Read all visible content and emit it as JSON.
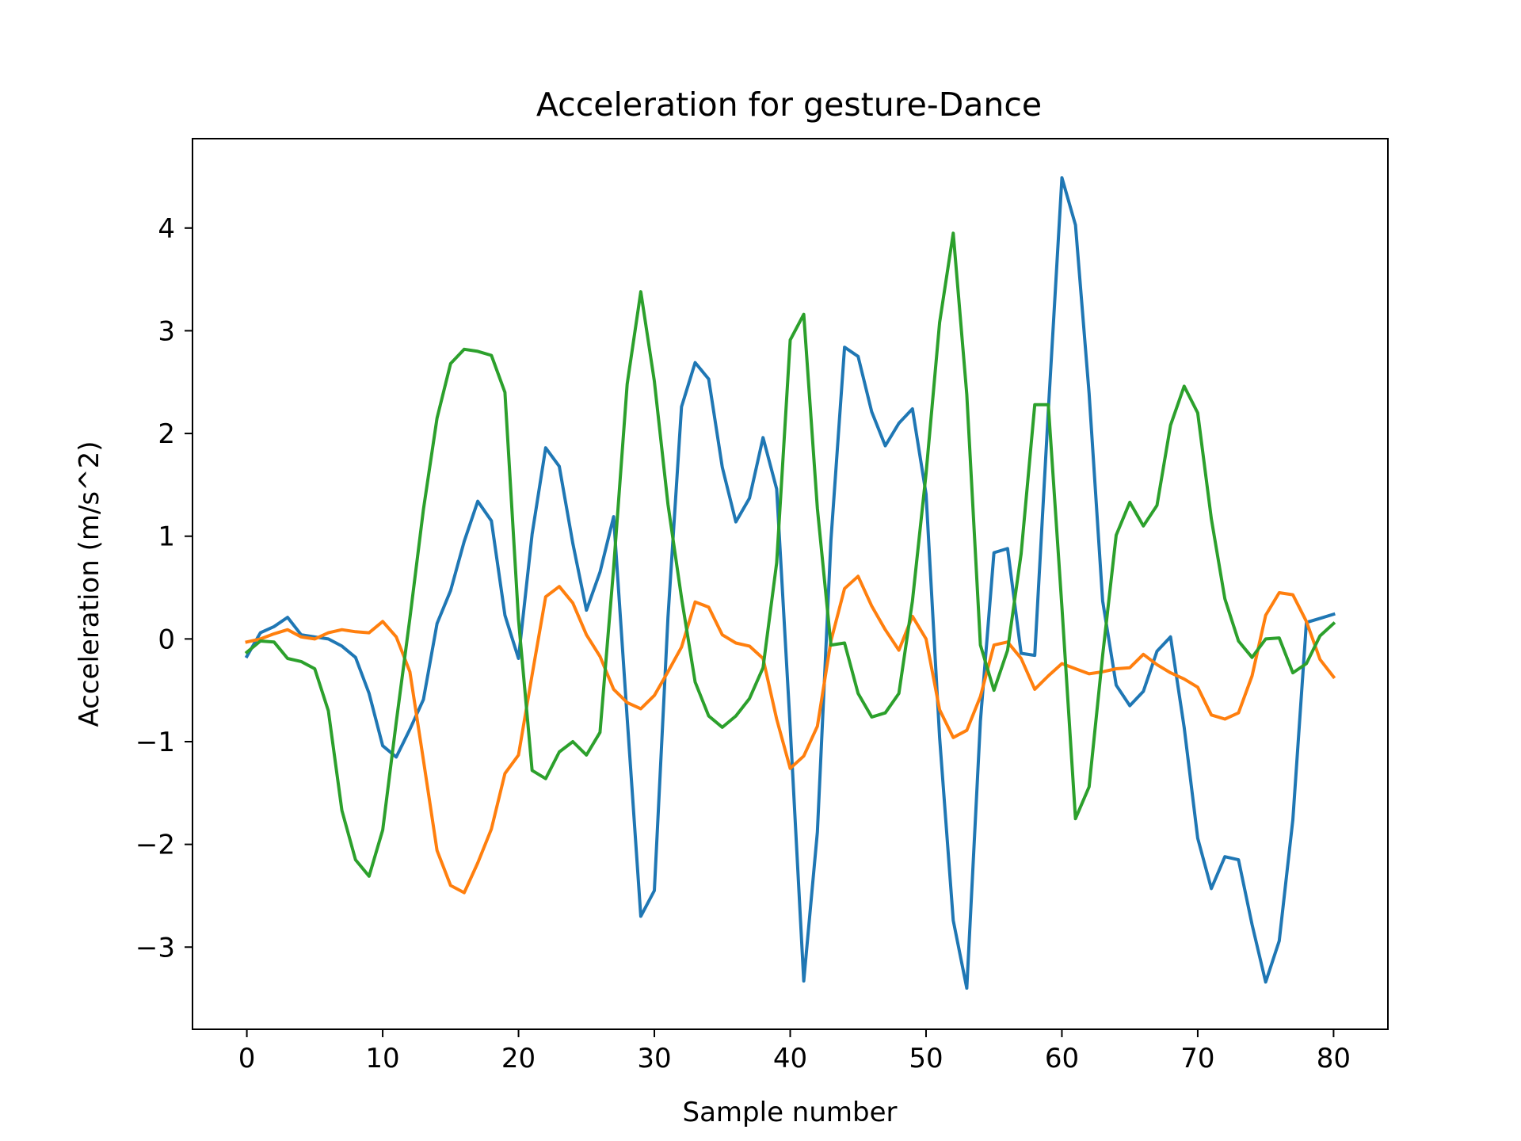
{
  "chart_data": {
    "type": "line",
    "title": "Acceleration for gesture-Dance",
    "xlabel": "Sample number",
    "ylabel": "Acceleration (m/s^2)",
    "xlim": [
      -4,
      84
    ],
    "ylim": [
      -3.8,
      4.87
    ],
    "xticks": [
      0,
      10,
      20,
      30,
      40,
      50,
      60,
      70,
      80
    ],
    "xtick_labels": [
      "0",
      "10",
      "20",
      "30",
      "40",
      "50",
      "60",
      "70",
      "80"
    ],
    "yticks": [
      -3,
      -2,
      -1,
      0,
      1,
      2,
      3,
      4
    ],
    "ytick_labels": [
      "−3",
      "−2",
      "−1",
      "0",
      "1",
      "2",
      "3",
      "4"
    ],
    "grid": false,
    "legend": null,
    "x_start": 0,
    "x_step": 1,
    "series": [
      {
        "color": "#1f77b4",
        "values": [
          -0.17,
          0.06,
          0.12,
          0.21,
          0.04,
          0.02,
          0.0,
          -0.07,
          -0.18,
          -0.53,
          -1.04,
          -1.15,
          -0.88,
          -0.59,
          0.15,
          0.47,
          0.95,
          1.34,
          1.15,
          0.23,
          -0.19,
          1.02,
          1.86,
          1.68,
          0.93,
          0.28,
          0.65,
          1.19,
          -0.77,
          -2.7,
          -2.45,
          0.21,
          2.26,
          2.69,
          2.53,
          1.67,
          1.14,
          1.37,
          1.96,
          1.46,
          -0.86,
          -3.33,
          -1.88,
          0.96,
          2.84,
          2.75,
          2.21,
          1.88,
          2.1,
          2.24,
          1.41,
          -0.96,
          -2.74,
          -3.4,
          -0.8,
          0.84,
          0.88,
          -0.14,
          -0.16,
          2.22,
          4.49,
          4.03,
          2.39,
          0.37,
          -0.45,
          -0.65,
          -0.51,
          -0.12,
          0.02,
          -0.86,
          -1.94,
          -2.43,
          -2.12,
          -2.15,
          -2.78,
          -3.34,
          -2.94,
          -1.76,
          0.16,
          0.2,
          0.24
        ]
      },
      {
        "color": "#ff7f0e",
        "values": [
          -0.03,
          0.0,
          0.05,
          0.09,
          0.02,
          0.0,
          0.06,
          0.09,
          0.07,
          0.06,
          0.17,
          0.02,
          -0.32,
          -1.18,
          -2.06,
          -2.4,
          -2.47,
          -2.18,
          -1.85,
          -1.31,
          -1.13,
          -0.35,
          0.41,
          0.51,
          0.35,
          0.04,
          -0.17,
          -0.49,
          -0.62,
          -0.68,
          -0.55,
          -0.32,
          -0.08,
          0.36,
          0.31,
          0.04,
          -0.04,
          -0.07,
          -0.19,
          -0.78,
          -1.26,
          -1.14,
          -0.85,
          -0.02,
          0.49,
          0.61,
          0.32,
          0.09,
          -0.11,
          0.22,
          0.0,
          -0.69,
          -0.96,
          -0.89,
          -0.56,
          -0.06,
          -0.03,
          -0.19,
          -0.49,
          -0.36,
          -0.24,
          -0.29,
          -0.34,
          -0.32,
          -0.29,
          -0.28,
          -0.15,
          -0.25,
          -0.33,
          -0.39,
          -0.47,
          -0.74,
          -0.78,
          -0.72,
          -0.36,
          0.23,
          0.45,
          0.43,
          0.17,
          -0.2,
          -0.37
        ]
      },
      {
        "color": "#2ca02c",
        "values": [
          -0.13,
          -0.02,
          -0.03,
          -0.19,
          -0.22,
          -0.29,
          -0.7,
          -1.67,
          -2.15,
          -2.31,
          -1.86,
          -0.81,
          0.2,
          1.26,
          2.15,
          2.68,
          2.82,
          2.8,
          2.76,
          2.4,
          0.19,
          -1.28,
          -1.36,
          -1.1,
          -1.0,
          -1.13,
          -0.91,
          0.69,
          2.48,
          3.38,
          2.51,
          1.31,
          0.4,
          -0.42,
          -0.75,
          -0.86,
          -0.75,
          -0.58,
          -0.28,
          0.74,
          2.91,
          3.16,
          1.27,
          -0.06,
          -0.04,
          -0.53,
          -0.76,
          -0.72,
          -0.53,
          0.37,
          1.61,
          3.08,
          3.95,
          2.38,
          -0.06,
          -0.5,
          -0.11,
          0.83,
          2.28,
          2.28,
          0.31,
          -1.75,
          -1.44,
          -0.16,
          1.01,
          1.33,
          1.1,
          1.3,
          2.08,
          2.46,
          2.2,
          1.17,
          0.39,
          -0.02,
          -0.18,
          0.0,
          0.01,
          -0.33,
          -0.24,
          0.03,
          0.15
        ]
      }
    ]
  }
}
